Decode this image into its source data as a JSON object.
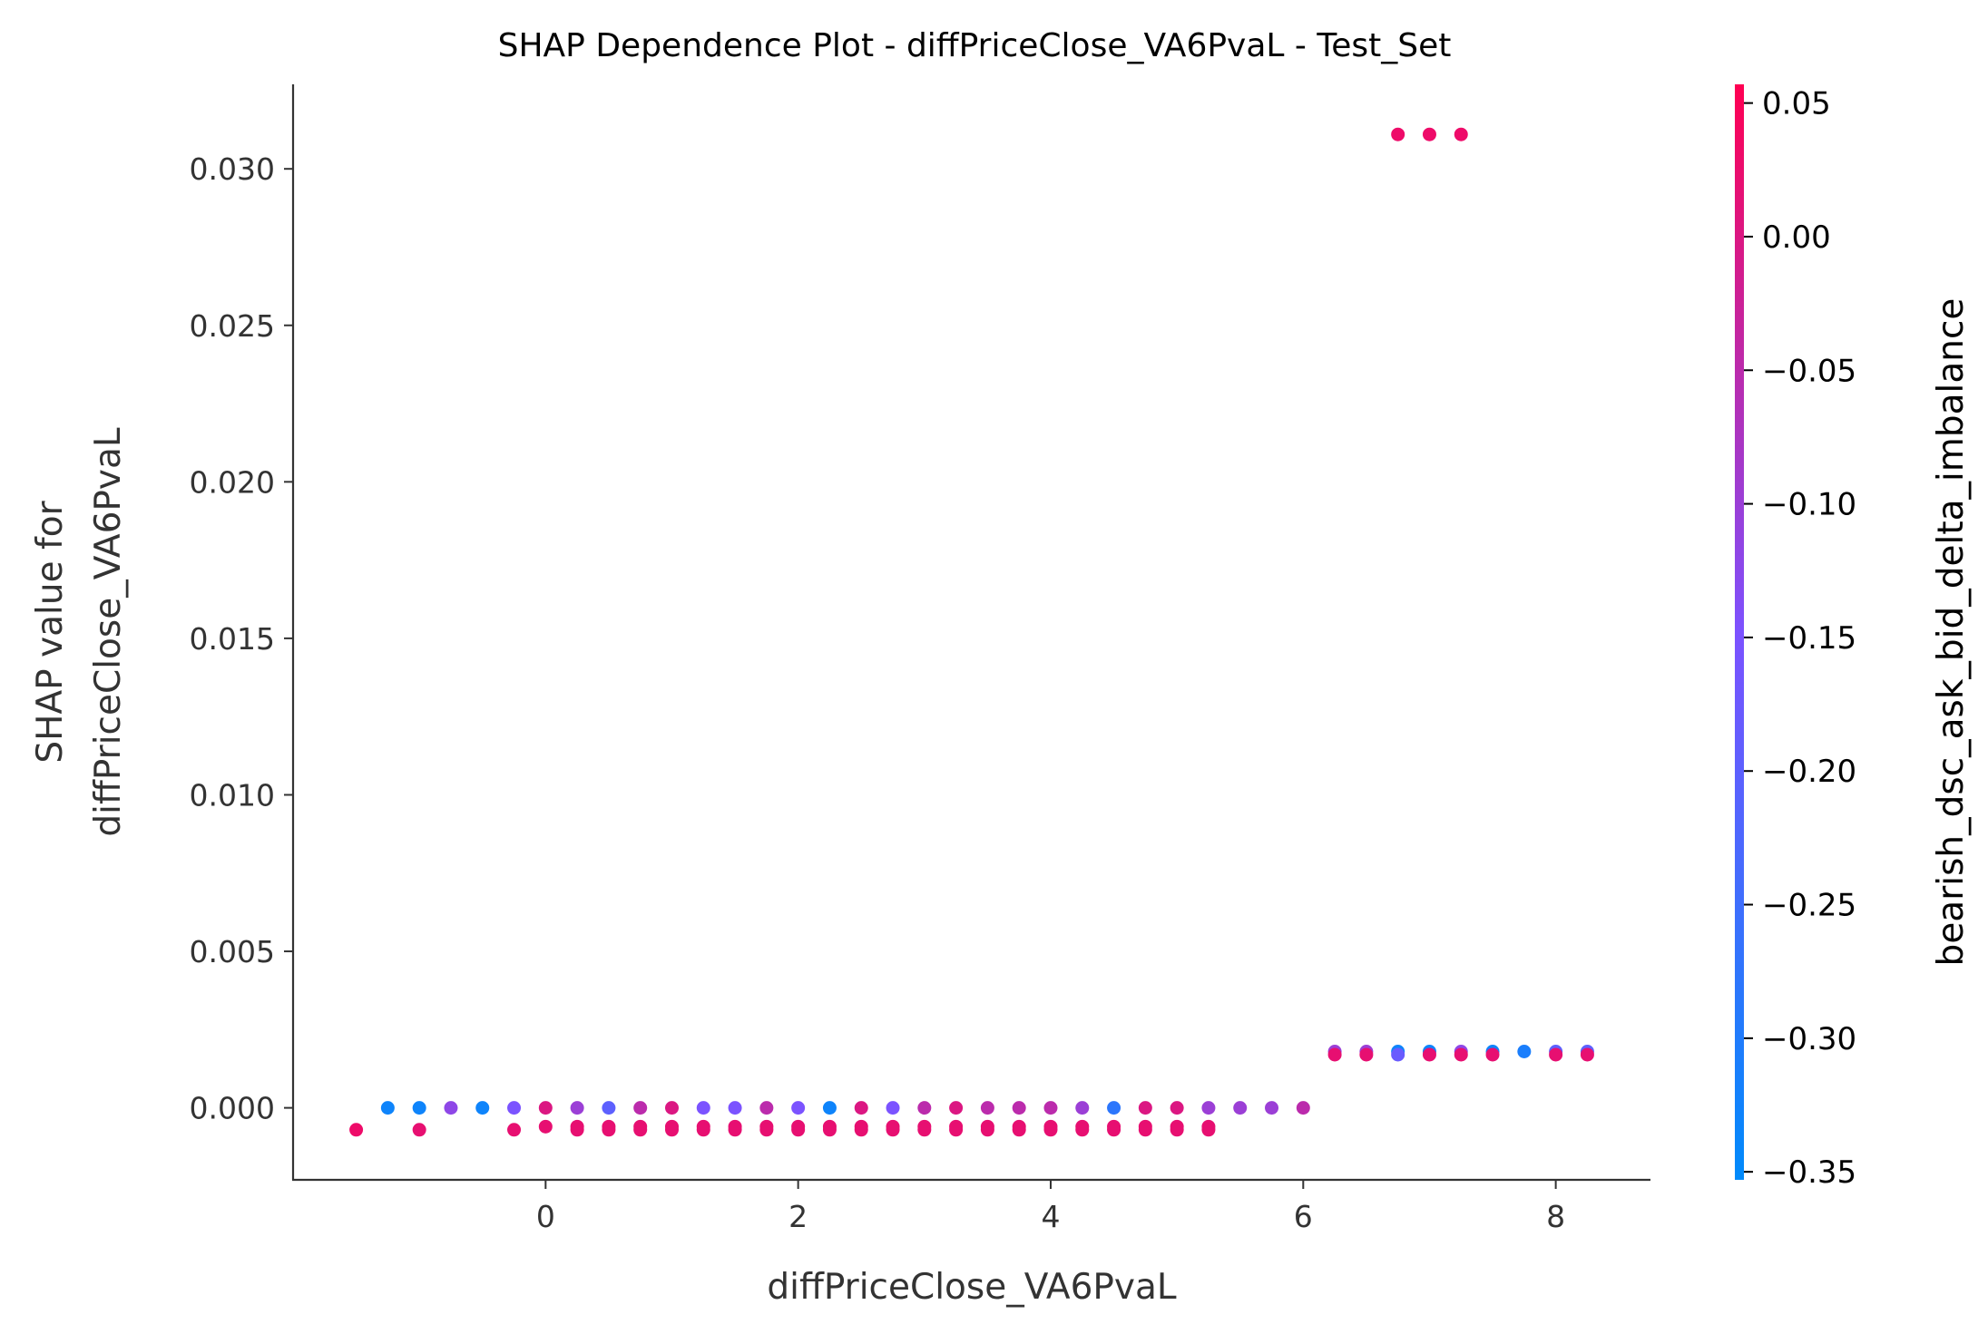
{
  "chart_data": {
    "type": "scatter",
    "title": "SHAP Dependence Plot - diffPriceClose_VA6PvaL - Test_Set",
    "xlabel": "diffPriceClose_VA6PvaL",
    "ylabel_lines": [
      "SHAP value for",
      "diffPriceClose_VA6PvaL"
    ],
    "color_label": "bearish_dsc_ask_bid_delta_imbalance",
    "xlim": [
      -2.0,
      8.75
    ],
    "ylim": [
      -0.0023,
      0.0327
    ],
    "color_range": [
      -0.353,
      0.057
    ],
    "colormap": [
      "#008afb",
      "#7c52ff",
      "#ff0052"
    ],
    "x_ticks": [
      {
        "value": 0,
        "label": "0"
      },
      {
        "value": 2,
        "label": "2"
      },
      {
        "value": 4,
        "label": "4"
      },
      {
        "value": 6,
        "label": "6"
      },
      {
        "value": 8,
        "label": "8"
      }
    ],
    "y_ticks": [
      {
        "value": 0.0,
        "label": "0.000"
      },
      {
        "value": 0.005,
        "label": "0.005"
      },
      {
        "value": 0.01,
        "label": "0.010"
      },
      {
        "value": 0.015,
        "label": "0.015"
      },
      {
        "value": 0.02,
        "label": "0.020"
      },
      {
        "value": 0.025,
        "label": "0.025"
      },
      {
        "value": 0.03,
        "label": "0.030"
      }
    ],
    "color_ticks": [
      {
        "value": 0.05,
        "label": "0.05"
      },
      {
        "value": 0.0,
        "label": "0.00"
      },
      {
        "value": -0.05,
        "label": "−0.05"
      },
      {
        "value": -0.1,
        "label": "−0.10"
      },
      {
        "value": -0.15,
        "label": "−0.15"
      },
      {
        "value": -0.2,
        "label": "−0.20"
      },
      {
        "value": -0.25,
        "label": "−0.25"
      },
      {
        "value": -0.3,
        "label": "−0.30"
      },
      {
        "value": -0.35,
        "label": "−0.35"
      }
    ],
    "points": [
      {
        "x": -1.5,
        "y": -0.0007,
        "c": 0.03
      },
      {
        "x": -1.25,
        "y": 0.0,
        "c": -0.33
      },
      {
        "x": -1.0,
        "y": 0.0,
        "c": -0.33
      },
      {
        "x": -1.0,
        "y": -0.0007,
        "c": 0.02
      },
      {
        "x": -0.75,
        "y": 0.0,
        "c": -0.12
      },
      {
        "x": -0.5,
        "y": 0.0,
        "c": -0.33
      },
      {
        "x": -0.25,
        "y": 0.0,
        "c": -0.15
      },
      {
        "x": -0.25,
        "y": -0.0007,
        "c": 0.02
      },
      {
        "x": 0.0,
        "y": 0.0,
        "c": 0.0
      },
      {
        "x": 0.0,
        "y": -0.0006,
        "c": 0.02
      },
      {
        "x": 0.25,
        "y": 0.0,
        "c": -0.1
      },
      {
        "x": 0.25,
        "y": -0.0006,
        "c": 0.02
      },
      {
        "x": 0.25,
        "y": -0.0007,
        "c": 0.02
      },
      {
        "x": 0.5,
        "y": 0.0,
        "c": -0.2
      },
      {
        "x": 0.5,
        "y": -0.0006,
        "c": 0.02
      },
      {
        "x": 0.5,
        "y": -0.0007,
        "c": 0.02
      },
      {
        "x": 0.75,
        "y": 0.0,
        "c": -0.05
      },
      {
        "x": 0.75,
        "y": -0.0006,
        "c": 0.02
      },
      {
        "x": 0.75,
        "y": -0.0007,
        "c": 0.02
      },
      {
        "x": 1.0,
        "y": 0.0,
        "c": 0.0
      },
      {
        "x": 1.0,
        "y": -0.0006,
        "c": 0.02
      },
      {
        "x": 1.0,
        "y": -0.0007,
        "c": 0.02
      },
      {
        "x": 1.25,
        "y": 0.0,
        "c": -0.15
      },
      {
        "x": 1.25,
        "y": -0.0006,
        "c": 0.02
      },
      {
        "x": 1.25,
        "y": -0.0007,
        "c": 0.02
      },
      {
        "x": 1.5,
        "y": 0.0,
        "c": -0.15
      },
      {
        "x": 1.5,
        "y": -0.0006,
        "c": 0.02
      },
      {
        "x": 1.5,
        "y": -0.0007,
        "c": 0.02
      },
      {
        "x": 1.75,
        "y": 0.0,
        "c": -0.05
      },
      {
        "x": 1.75,
        "y": -0.0006,
        "c": 0.02
      },
      {
        "x": 1.75,
        "y": -0.0007,
        "c": 0.02
      },
      {
        "x": 2.0,
        "y": 0.0,
        "c": -0.15
      },
      {
        "x": 2.0,
        "y": -0.0006,
        "c": 0.02
      },
      {
        "x": 2.0,
        "y": -0.0007,
        "c": 0.02
      },
      {
        "x": 2.25,
        "y": 0.0,
        "c": -0.33
      },
      {
        "x": 2.25,
        "y": -0.0006,
        "c": 0.02
      },
      {
        "x": 2.25,
        "y": -0.0007,
        "c": 0.02
      },
      {
        "x": 2.5,
        "y": 0.0,
        "c": 0.0
      },
      {
        "x": 2.5,
        "y": -0.0006,
        "c": 0.02
      },
      {
        "x": 2.5,
        "y": -0.0007,
        "c": 0.02
      },
      {
        "x": 2.75,
        "y": 0.0,
        "c": -0.15
      },
      {
        "x": 2.75,
        "y": -0.0006,
        "c": 0.02
      },
      {
        "x": 2.75,
        "y": -0.0007,
        "c": 0.02
      },
      {
        "x": 3.0,
        "y": 0.0,
        "c": -0.05
      },
      {
        "x": 3.0,
        "y": -0.0006,
        "c": 0.02
      },
      {
        "x": 3.0,
        "y": -0.0007,
        "c": 0.02
      },
      {
        "x": 3.25,
        "y": 0.0,
        "c": 0.0
      },
      {
        "x": 3.25,
        "y": -0.0006,
        "c": 0.02
      },
      {
        "x": 3.25,
        "y": -0.0007,
        "c": 0.02
      },
      {
        "x": 3.5,
        "y": 0.0,
        "c": -0.05
      },
      {
        "x": 3.5,
        "y": -0.0006,
        "c": 0.02
      },
      {
        "x": 3.5,
        "y": -0.0007,
        "c": 0.02
      },
      {
        "x": 3.75,
        "y": 0.0,
        "c": -0.05
      },
      {
        "x": 3.75,
        "y": -0.0006,
        "c": 0.02
      },
      {
        "x": 3.75,
        "y": -0.0007,
        "c": 0.02
      },
      {
        "x": 4.0,
        "y": 0.0,
        "c": -0.05
      },
      {
        "x": 4.0,
        "y": -0.0006,
        "c": 0.02
      },
      {
        "x": 4.0,
        "y": -0.0007,
        "c": 0.02
      },
      {
        "x": 4.25,
        "y": 0.0,
        "c": -0.1
      },
      {
        "x": 4.25,
        "y": -0.0006,
        "c": 0.02
      },
      {
        "x": 4.25,
        "y": -0.0007,
        "c": 0.02
      },
      {
        "x": 4.5,
        "y": 0.0,
        "c": -0.28
      },
      {
        "x": 4.5,
        "y": -0.0006,
        "c": 0.02
      },
      {
        "x": 4.5,
        "y": -0.0007,
        "c": 0.02
      },
      {
        "x": 4.75,
        "y": 0.0,
        "c": 0.0
      },
      {
        "x": 4.75,
        "y": -0.0006,
        "c": 0.02
      },
      {
        "x": 4.75,
        "y": -0.0007,
        "c": 0.02
      },
      {
        "x": 5.0,
        "y": 0.0,
        "c": 0.0
      },
      {
        "x": 5.0,
        "y": -0.0006,
        "c": 0.02
      },
      {
        "x": 5.0,
        "y": -0.0007,
        "c": 0.02
      },
      {
        "x": 5.25,
        "y": 0.0,
        "c": -0.1
      },
      {
        "x": 5.25,
        "y": -0.0006,
        "c": 0.02
      },
      {
        "x": 5.25,
        "y": -0.0007,
        "c": 0.02
      },
      {
        "x": 5.5,
        "y": 0.0,
        "c": -0.1
      },
      {
        "x": 5.75,
        "y": 0.0,
        "c": -0.1
      },
      {
        "x": 6.0,
        "y": 0.0,
        "c": -0.05
      },
      {
        "x": 6.25,
        "y": 0.0018,
        "c": -0.1
      },
      {
        "x": 6.25,
        "y": 0.0017,
        "c": 0.02
      },
      {
        "x": 6.5,
        "y": 0.0018,
        "c": -0.1
      },
      {
        "x": 6.5,
        "y": 0.0017,
        "c": 0.02
      },
      {
        "x": 6.75,
        "y": 0.0018,
        "c": -0.33
      },
      {
        "x": 6.75,
        "y": 0.0017,
        "c": -0.18
      },
      {
        "x": 6.75,
        "y": 0.0311,
        "c": 0.03
      },
      {
        "x": 7.0,
        "y": 0.0018,
        "c": -0.33
      },
      {
        "x": 7.0,
        "y": 0.0017,
        "c": 0.02
      },
      {
        "x": 7.0,
        "y": 0.0311,
        "c": 0.03
      },
      {
        "x": 7.25,
        "y": 0.0018,
        "c": -0.12
      },
      {
        "x": 7.25,
        "y": 0.0017,
        "c": 0.02
      },
      {
        "x": 7.25,
        "y": 0.0311,
        "c": 0.03
      },
      {
        "x": 7.5,
        "y": 0.0018,
        "c": -0.33
      },
      {
        "x": 7.5,
        "y": 0.0017,
        "c": 0.02
      },
      {
        "x": 7.75,
        "y": 0.0018,
        "c": -0.31
      },
      {
        "x": 8.0,
        "y": 0.0018,
        "c": -0.2
      },
      {
        "x": 8.0,
        "y": 0.0017,
        "c": 0.02
      },
      {
        "x": 8.25,
        "y": 0.0018,
        "c": -0.2
      },
      {
        "x": 8.25,
        "y": 0.0017,
        "c": 0.02
      }
    ]
  }
}
